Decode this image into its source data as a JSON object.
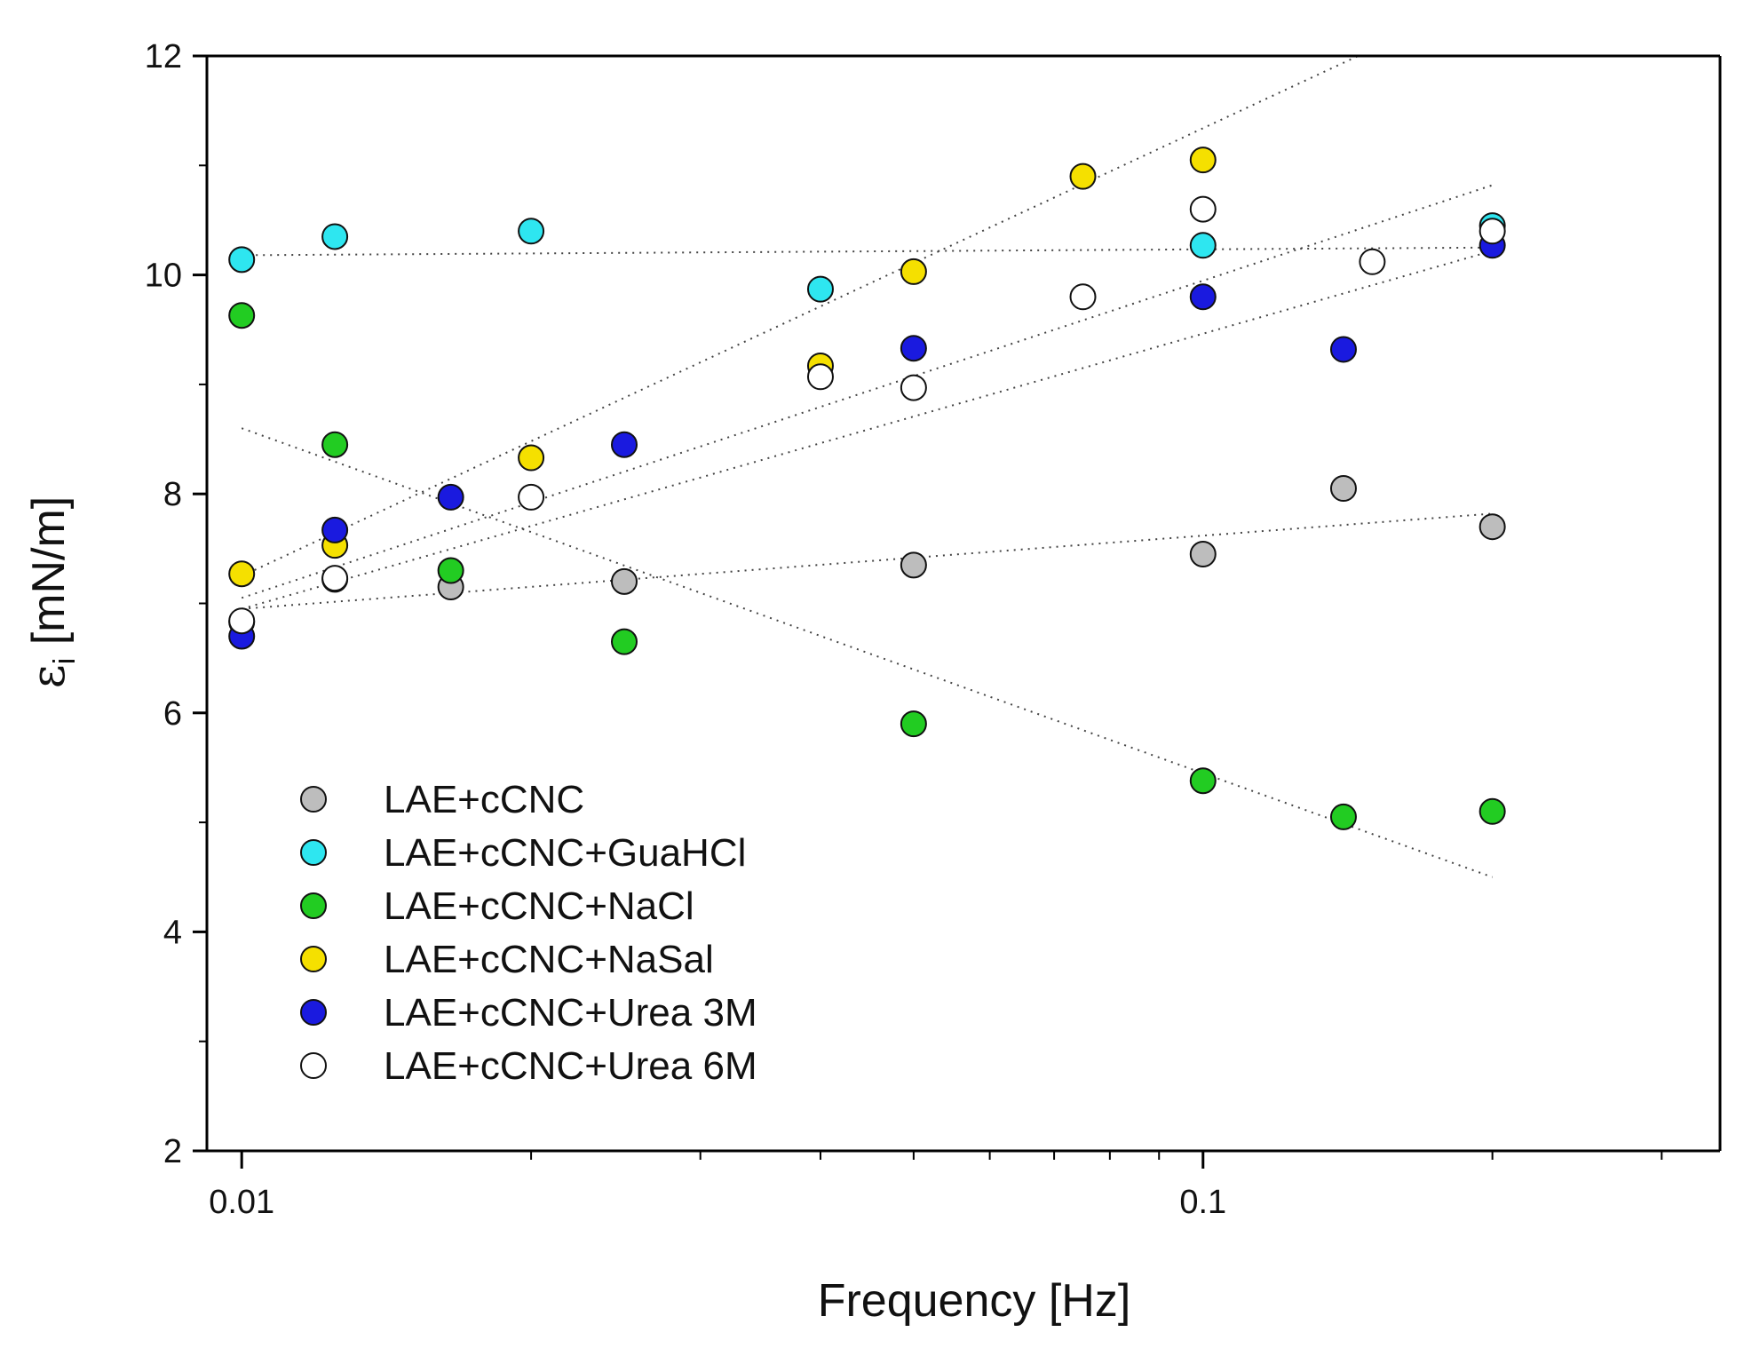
{
  "chart_data": {
    "type": "scatter",
    "title": "",
    "xlabel": "Frequency [Hz]",
    "ylabel_symbol": "ε",
    "ylabel_subscript": "i",
    "ylabel_unit": " [mN/m]",
    "xscale": "log",
    "xlim": [
      0.0092,
      0.345
    ],
    "ylim": [
      2,
      12
    ],
    "x_ticks": [
      0.01,
      0.1
    ],
    "x_tick_labels": [
      "0.01",
      "0.1"
    ],
    "y_ticks": [
      2,
      4,
      6,
      8,
      10,
      12
    ],
    "y_tick_labels": [
      "2",
      "4",
      "6",
      "8",
      "10",
      "12"
    ],
    "grid": false,
    "legend_position": "lower-left",
    "series": [
      {
        "name": "LAE+cCNC",
        "color": "#bdbdbd",
        "x": [
          0.01,
          0.0125,
          0.0165,
          0.025,
          0.05,
          0.1,
          0.14,
          0.2
        ],
        "y": [
          6.83,
          7.22,
          7.15,
          7.2,
          7.35,
          7.45,
          8.05,
          7.7
        ],
        "trend": [
          [
            0.01,
            6.95
          ],
          [
            0.2,
            7.82
          ]
        ]
      },
      {
        "name": "LAE+cCNC+GuaHCl",
        "color": "#2ee6f0",
        "x": [
          0.01,
          0.0125,
          0.02,
          0.04,
          0.1,
          0.2
        ],
        "y": [
          10.14,
          10.35,
          10.4,
          9.87,
          10.27,
          10.45
        ],
        "trend": [
          [
            0.01,
            10.18
          ],
          [
            0.2,
            10.25
          ]
        ]
      },
      {
        "name": "LAE+cCNC+NaCl",
        "color": "#22cc22",
        "x": [
          0.01,
          0.0125,
          0.0165,
          0.025,
          0.05,
          0.1,
          0.14,
          0.2
        ],
        "y": [
          9.63,
          8.45,
          7.3,
          6.65,
          5.9,
          5.38,
          5.05,
          5.1
        ],
        "trend": [
          [
            0.01,
            8.6
          ],
          [
            0.2,
            4.5
          ]
        ]
      },
      {
        "name": "LAE+cCNC+NaSal",
        "color": "#f5e000",
        "x": [
          0.01,
          0.0125,
          0.02,
          0.04,
          0.05,
          0.075,
          0.1
        ],
        "y": [
          7.27,
          7.53,
          8.33,
          9.17,
          10.03,
          10.9,
          11.05
        ],
        "trend": [
          [
            0.01,
            7.25
          ],
          [
            0.145,
            12.0
          ]
        ]
      },
      {
        "name": "LAE+cCNC+Urea 3M",
        "color": "#1a1adf",
        "x": [
          0.01,
          0.0125,
          0.0165,
          0.025,
          0.05,
          0.1,
          0.14,
          0.2
        ],
        "y": [
          6.7,
          7.67,
          7.97,
          8.45,
          9.33,
          9.8,
          9.32,
          10.27
        ],
        "trend": [
          [
            0.01,
            7.05
          ],
          [
            0.2,
            10.82
          ]
        ]
      },
      {
        "name": "LAE+cCNC+Urea 6M",
        "color": "#ffffff",
        "x": [
          0.01,
          0.0125,
          0.02,
          0.04,
          0.05,
          0.075,
          0.1,
          0.15,
          0.2
        ],
        "y": [
          6.84,
          7.23,
          7.97,
          9.07,
          8.97,
          9.8,
          10.6,
          10.12,
          10.4
        ],
        "trend": [
          [
            0.01,
            6.95
          ],
          [
            0.2,
            10.22
          ]
        ]
      }
    ]
  }
}
